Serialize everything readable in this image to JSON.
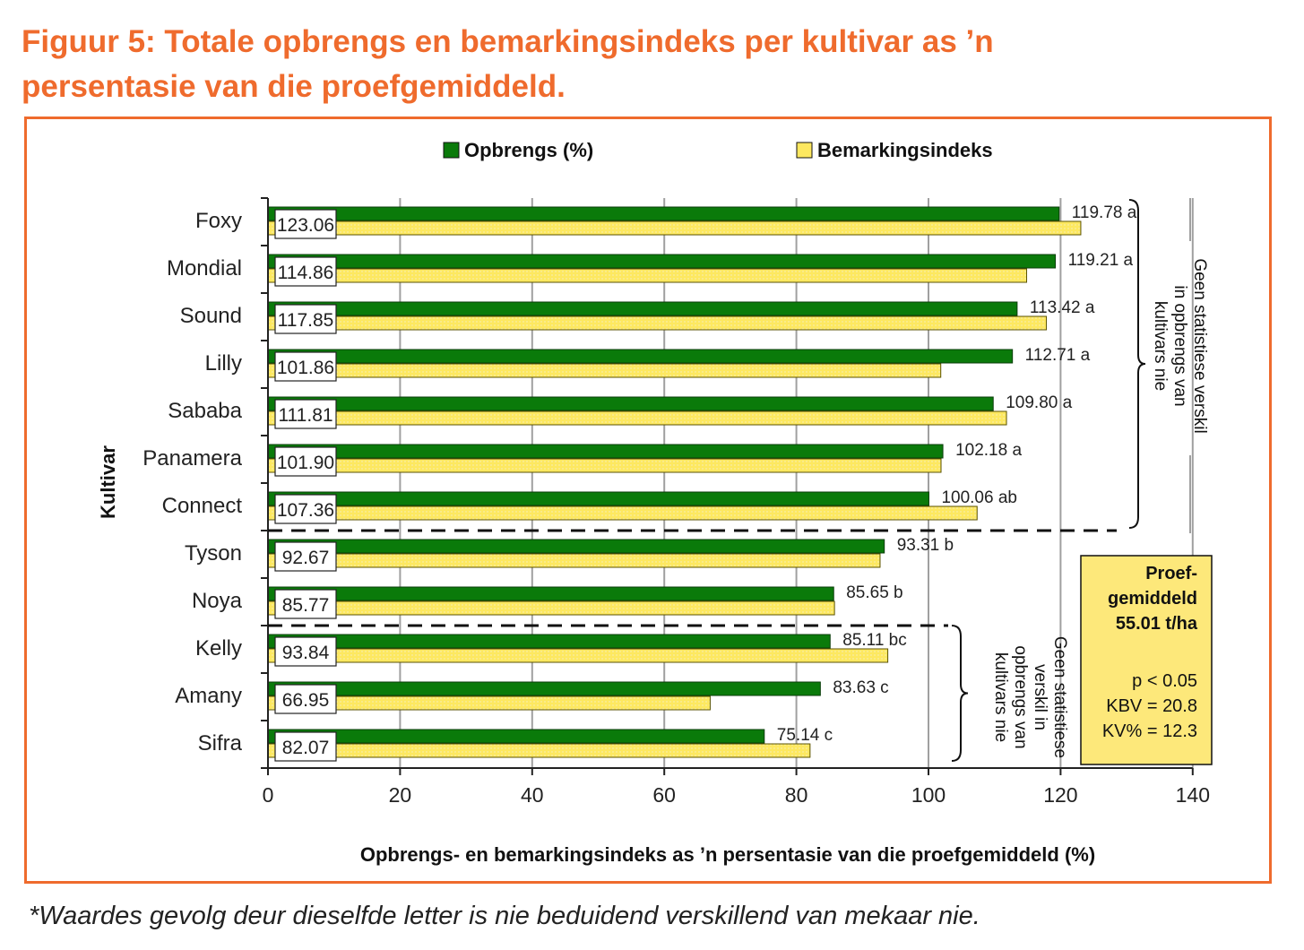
{
  "title_line1": "Figuur 5: Totale opbrengs en bemarkingsindeks per kultivar as ’n",
  "title_line2": "persentasie van die proefgemiddeld.",
  "footnote": "*Waardes gevolg deur dieselfde letter is nie beduidend verskillend van mekaar nie.",
  "colors": {
    "opbrengs": "#0a7a0a",
    "bemarking": "#fde860",
    "title": "#ef6b2d",
    "box": "#fde87a"
  },
  "chart_data": {
    "type": "bar",
    "orientation": "horizontal",
    "ylabel": "Kultivar",
    "xlabel": "Opbrengs- en bemarkingsindeks as ’n persentasie van die proefgemiddeld (%)",
    "xlim": [
      0,
      140
    ],
    "xticks": [
      0,
      20,
      40,
      60,
      80,
      100,
      120,
      140
    ],
    "grid": true,
    "legend_position": "top",
    "categories": [
      "Foxy",
      "Mondial",
      "Sound",
      "Lilly",
      "Sababa",
      "Panamera",
      "Connect",
      "Tyson",
      "Noya",
      "Kelly",
      "Amany",
      "Sifra"
    ],
    "series": [
      {
        "name": "Opbrengs (%)",
        "values": [
          119.78,
          119.21,
          113.42,
          112.71,
          109.8,
          102.18,
          100.06,
          93.31,
          85.65,
          85.11,
          83.63,
          75.14
        ],
        "labels": [
          "119.78 a",
          "119.21 a",
          "113.42 a",
          "112.71 a",
          "109.80 a",
          "102.18 a",
          "100.06 ab",
          "93.31 b",
          "85.65 b",
          "85.11 bc",
          "83.63 c",
          "75.14 c"
        ]
      },
      {
        "name": "Bemarkingsindeks",
        "values": [
          123.06,
          114.86,
          117.85,
          101.86,
          111.81,
          101.9,
          107.36,
          92.67,
          85.77,
          93.84,
          66.95,
          82.07
        ],
        "labels": [
          "123.06",
          "114.86",
          "117.85",
          "101.86",
          "111.81",
          "101.90",
          "107.36",
          "92.67",
          "85.77",
          "93.84",
          "66.95",
          "82.07"
        ]
      }
    ],
    "annotations": {
      "group_top": [
        "Geen statistiese verskil",
        "in opbrengs van",
        "kultivars nie"
      ],
      "group_bottom": [
        "Geen statistiese",
        "verskil in",
        "opbrengs van",
        "kultivars nie"
      ],
      "stats_box": [
        "Proef-",
        "gemiddeld",
        "55.01 t/ha",
        "p < 0.05",
        "KBV = 20.8",
        "KV% = 12.3"
      ]
    }
  }
}
